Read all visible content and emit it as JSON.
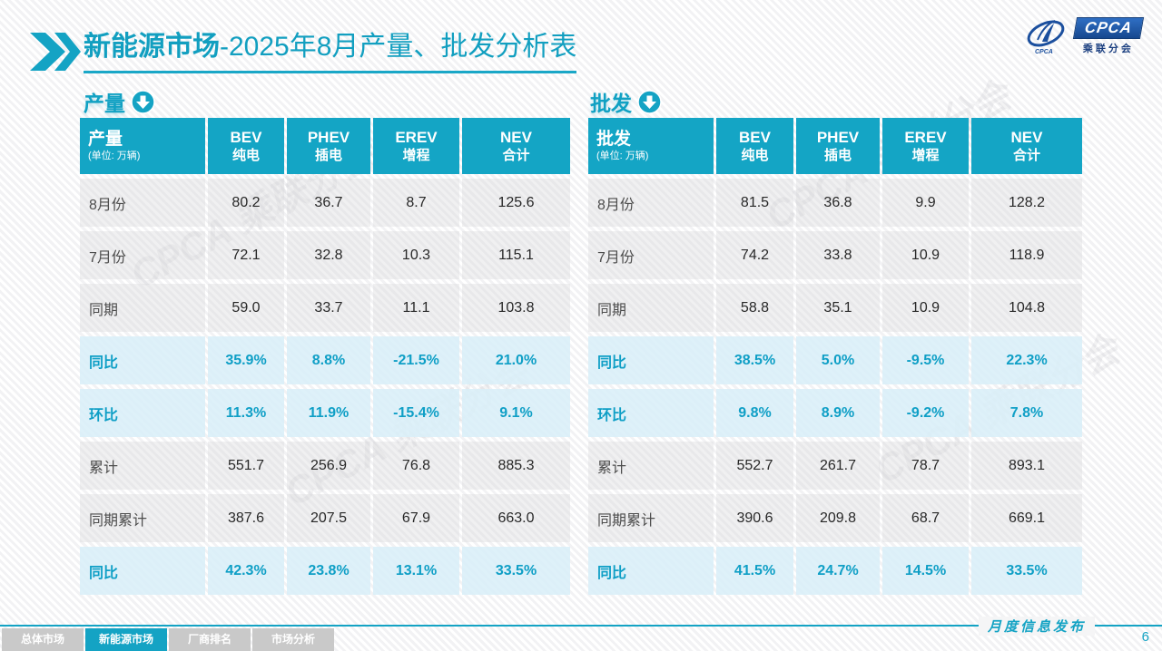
{
  "title": {
    "bold": "新能源市场",
    "rest": "-2025年8月产量、批发分析表"
  },
  "logo": {
    "cpca": "CPCA",
    "sub": "乘联分会"
  },
  "colors": {
    "accent": "#14a3c4",
    "header_bg": "#14a5c5",
    "highlight_row": "#e7f3fa"
  },
  "columns": [
    {
      "en": "BEV",
      "zh": "纯电"
    },
    {
      "en": "PHEV",
      "zh": "插电"
    },
    {
      "en": "EREV",
      "zh": "增程"
    },
    {
      "en": "NEV",
      "zh": "合计"
    }
  ],
  "tables": [
    {
      "section_title": "产量",
      "unit": "(单位: 万辆)",
      "rows": [
        {
          "label": "8月份",
          "values": [
            "80.2",
            "36.7",
            "8.7",
            "125.6"
          ],
          "highlight": false
        },
        {
          "label": "7月份",
          "values": [
            "72.1",
            "32.8",
            "10.3",
            "115.1"
          ],
          "highlight": false
        },
        {
          "label": "同期",
          "values": [
            "59.0",
            "33.7",
            "11.1",
            "103.8"
          ],
          "highlight": false
        },
        {
          "label": "同比",
          "values": [
            "35.9%",
            "8.8%",
            "-21.5%",
            "21.0%"
          ],
          "highlight": true
        },
        {
          "label": "环比",
          "values": [
            "11.3%",
            "11.9%",
            "-15.4%",
            "9.1%"
          ],
          "highlight": true
        },
        {
          "label": "累计",
          "values": [
            "551.7",
            "256.9",
            "76.8",
            "885.3"
          ],
          "highlight": false
        },
        {
          "label": "同期累计",
          "values": [
            "387.6",
            "207.5",
            "67.9",
            "663.0"
          ],
          "highlight": false
        },
        {
          "label": "同比",
          "values": [
            "42.3%",
            "23.8%",
            "13.1%",
            "33.5%"
          ],
          "highlight": true
        }
      ]
    },
    {
      "section_title": "批发",
      "unit": "(单位: 万辆)",
      "rows": [
        {
          "label": "8月份",
          "values": [
            "81.5",
            "36.8",
            "9.9",
            "128.2"
          ],
          "highlight": false
        },
        {
          "label": "7月份",
          "values": [
            "74.2",
            "33.8",
            "10.9",
            "118.9"
          ],
          "highlight": false
        },
        {
          "label": "同期",
          "values": [
            "58.8",
            "35.1",
            "10.9",
            "104.8"
          ],
          "highlight": false
        },
        {
          "label": "同比",
          "values": [
            "38.5%",
            "5.0%",
            "-9.5%",
            "22.3%"
          ],
          "highlight": true
        },
        {
          "label": "环比",
          "values": [
            "9.8%",
            "8.9%",
            "-9.2%",
            "7.8%"
          ],
          "highlight": true
        },
        {
          "label": "累计",
          "values": [
            "552.7",
            "261.7",
            "78.7",
            "893.1"
          ],
          "highlight": false
        },
        {
          "label": "同期累计",
          "values": [
            "390.6",
            "209.8",
            "68.7",
            "669.1"
          ],
          "highlight": false
        },
        {
          "label": "同比",
          "values": [
            "41.5%",
            "24.7%",
            "14.5%",
            "33.5%"
          ],
          "highlight": true
        }
      ]
    }
  ],
  "tabs": [
    {
      "label": "总体市场",
      "active": false
    },
    {
      "label": "新能源市场",
      "active": true
    },
    {
      "label": "厂商排名",
      "active": false
    },
    {
      "label": "市场分析",
      "active": false
    }
  ],
  "footer": {
    "note": "月度信息发布",
    "page": "6"
  },
  "watermark": "CPCA 乘联分会"
}
